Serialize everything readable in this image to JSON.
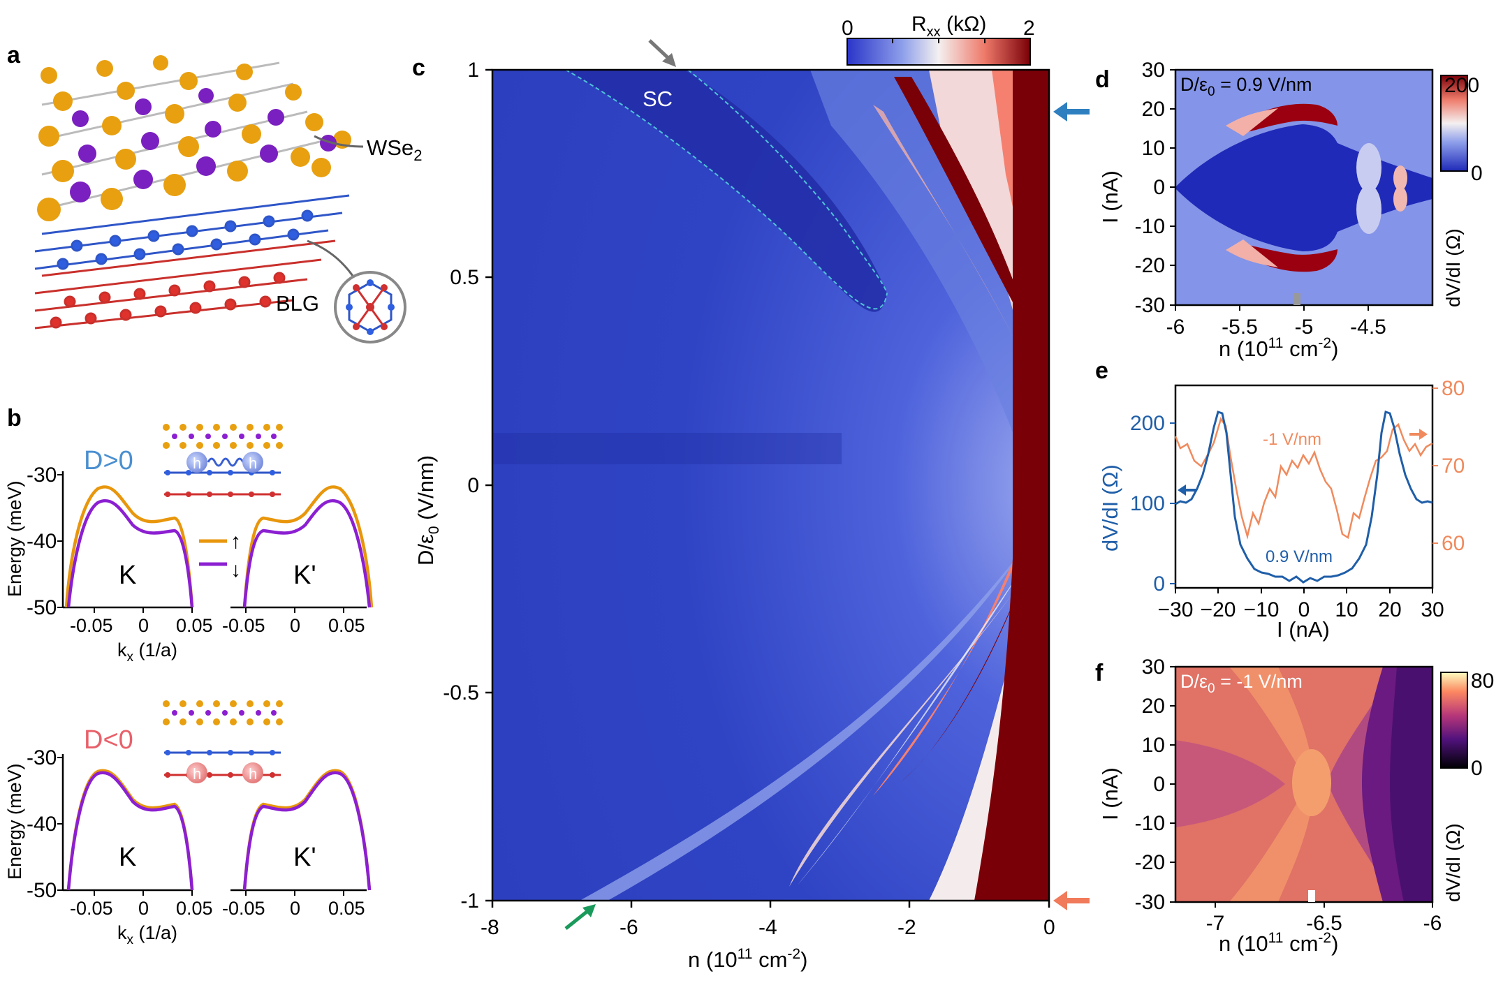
{
  "panels": {
    "a": {
      "letter": "a",
      "labels": {
        "wse2": "WSe",
        "wse2_sub": "2",
        "blg": "BLG"
      }
    },
    "b": {
      "letter": "b",
      "top": {
        "title": "D>0",
        "valley_left": "K",
        "valley_right": "K'",
        "spin_up": "↑",
        "spin_down": "↓"
      },
      "bottom": {
        "title": "D<0",
        "valley_left": "K",
        "valley_right": "K'"
      },
      "ylabel": "Energy (meV)",
      "xlabel": "k",
      "xlabel_sub": "x",
      "xlabel_unit": " (1/a)",
      "yticks": [
        "-30",
        "-40",
        "-50"
      ],
      "xticks_left": [
        "-0.05",
        "0",
        "0.05"
      ],
      "xticks_right": [
        "-0.05",
        "0",
        "0.05"
      ],
      "hole_symbol": "h"
    },
    "c": {
      "letter": "c",
      "xlabel": "n (10",
      "xlabel_sup": "11",
      "xlabel_unit": " cm",
      "xlabel_unit_sup": "-2",
      "xlabel_close": ")",
      "ylabel": "D/ε",
      "ylabel_sub": "0",
      "ylabel_unit": " (V/nm)",
      "xticks": [
        "-8",
        "-6",
        "-4",
        "-2",
        "0"
      ],
      "yticks": [
        "1",
        "0.5",
        "0",
        "-0.5",
        "-1"
      ],
      "sc_label": "SC",
      "colorbar": {
        "label": "R",
        "label_sub": "xx",
        "label_unit": " (kΩ)",
        "min": "0",
        "max": "2"
      }
    },
    "d": {
      "letter": "d",
      "inset": "D/ε",
      "inset_sub": "0",
      "inset_value": " = 0.9 V/nm",
      "ylabel": "I (nA)",
      "xlabel": "n (10",
      "xlabel_sup": "11",
      "xlabel_unit": " cm",
      "xlabel_unit_sup": "-2",
      "xlabel_close": ")",
      "xticks": [
        "-6",
        "-5.5",
        "-5",
        "-4.5"
      ],
      "yticks": [
        "30",
        "20",
        "10",
        "0",
        "-10",
        "-20",
        "-30"
      ],
      "colorbar": {
        "label": "dV/dI (Ω)",
        "min": "0",
        "max": "200"
      }
    },
    "e": {
      "letter": "e",
      "ylabel_left": "dV/dI (Ω)",
      "xlabel": "I (nA)",
      "yticks_left": [
        "200",
        "100",
        "0"
      ],
      "yticks_right": [
        "80",
        "70",
        "60"
      ],
      "xticks": [
        "−30",
        "−20",
        "−10",
        "0",
        "10",
        "20",
        "30"
      ],
      "series_labels": {
        "orange": "-1 V/nm",
        "blue": "0.9 V/nm"
      }
    },
    "f": {
      "letter": "f",
      "inset": "D/ε",
      "inset_sub": "0",
      "inset_value": " = -1 V/nm",
      "ylabel": "I (nA)",
      "xlabel": "n (10",
      "xlabel_sup": "11",
      "xlabel_unit": " cm",
      "xlabel_unit_sup": "-2",
      "xlabel_close": ")",
      "xticks": [
        "-7",
        "-6.5",
        "-6"
      ],
      "yticks": [
        "30",
        "20",
        "10",
        "0",
        "-10",
        "-20",
        "-30"
      ],
      "colorbar": {
        "label": "dV/dI (Ω)",
        "min": "0",
        "max": "80"
      }
    }
  },
  "colors": {
    "blue_trace": "#1f5ea8",
    "orange_trace": "#f08a5d",
    "spin_up": "#e8960c",
    "spin_down": "#8b1fd1",
    "d_pos_title": "#4a8fd0",
    "d_neg_title": "#e8606a",
    "arrow_blue": "#2e7fbf",
    "arrow_orange": "#f07a5a",
    "arrow_green": "#1a9a5a",
    "arrow_gray": "#777777"
  }
}
